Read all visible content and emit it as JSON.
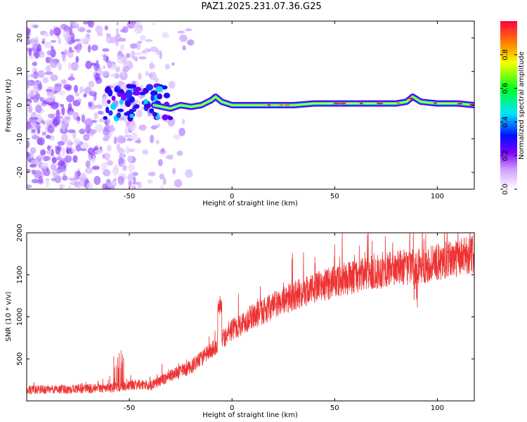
{
  "title": "PAZ1.2025.231.07.36.G25",
  "chart_data": [
    {
      "type": "heatmap",
      "xlabel": "Height of straight line (km)",
      "ylabel": "Frequency (Hz)",
      "xlim": [
        -100,
        118
      ],
      "ylim": [
        -25,
        25
      ],
      "xticks": [
        -50,
        0,
        50,
        100
      ],
      "yticks": [
        -20,
        -10,
        0,
        10,
        20
      ],
      "colorbar": {
        "label": "Normalized spectral amplitude",
        "range": [
          0,
          1
        ],
        "ticks": [
          0.0,
          0.2,
          0.4,
          0.6,
          0.8
        ]
      },
      "ridge": {
        "x": [
          -38,
          -30,
          -25,
          -20,
          -15,
          -10,
          -8,
          -5,
          0,
          10,
          20,
          30,
          40,
          50,
          60,
          70,
          80,
          85,
          88,
          92,
          100,
          110,
          118
        ],
        "y": [
          0,
          -1,
          0,
          -0.5,
          0,
          1.5,
          2.5,
          1,
          0,
          0,
          0,
          0,
          0.5,
          0.5,
          0.5,
          0.5,
          0.5,
          1,
          2.5,
          1,
          0.5,
          0.5,
          0
        ]
      }
    },
    {
      "type": "line",
      "xlabel": "Height of straight line (km)",
      "ylabel": "SNR (10 * v/v)",
      "xlim": [
        -100,
        118
      ],
      "ylim": [
        0,
        2000
      ],
      "xticks": [
        -50,
        0,
        50,
        100
      ],
      "yticks": [
        500,
        1000,
        1500,
        2000
      ],
      "series": [
        {
          "name": "SNR",
          "color": "#ee3333",
          "trend_x": [
            -100,
            -60,
            -45,
            -40,
            -30,
            -20,
            -10,
            0,
            10,
            20,
            30,
            40,
            50,
            60,
            70,
            80,
            90,
            100,
            110,
            118
          ],
          "trend_y": [
            130,
            150,
            200,
            180,
            300,
            400,
            600,
            850,
            1000,
            1130,
            1250,
            1340,
            1420,
            1480,
            1530,
            1580,
            1600,
            1650,
            1700,
            1750
          ]
        }
      ]
    }
  ]
}
